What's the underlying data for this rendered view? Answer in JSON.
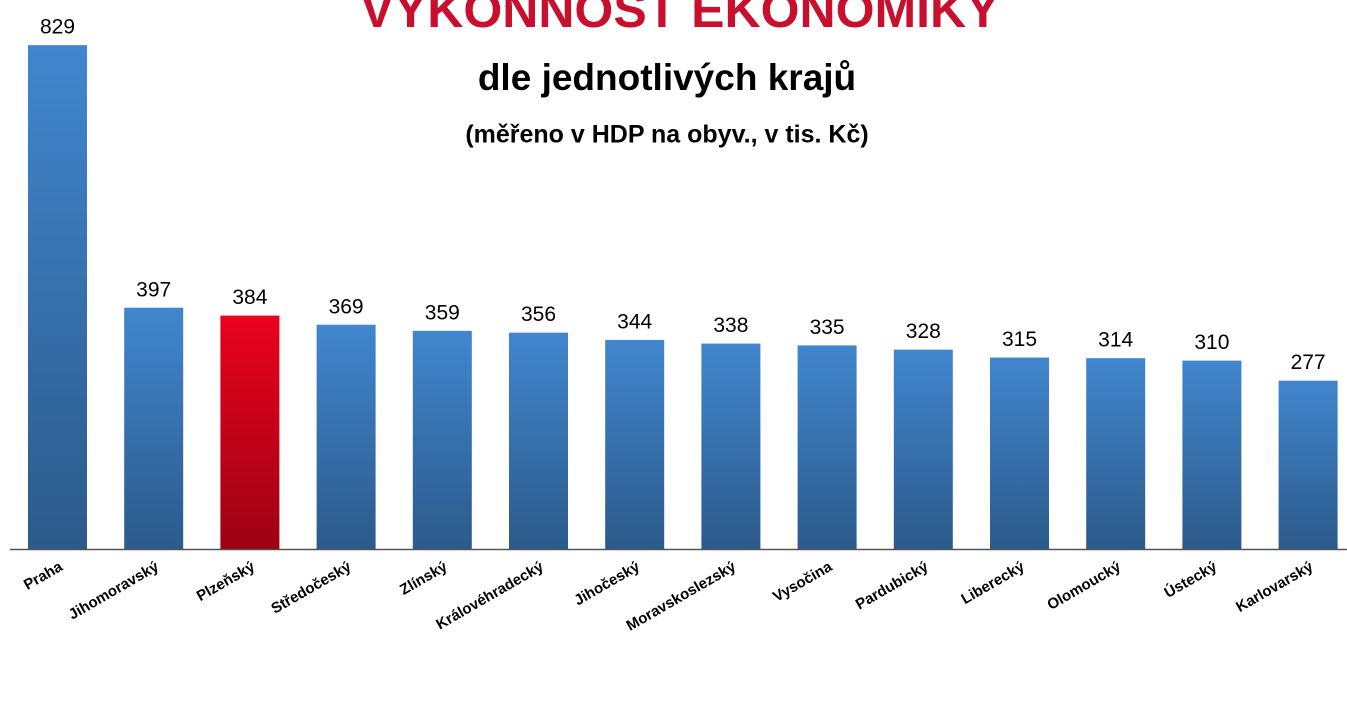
{
  "chart_data": {
    "type": "bar",
    "title": "VÝKONNOST EKONOMIKY",
    "subtitle": "dle jednotlivých krajů",
    "subtitle2": "(měřeno v HDP na obyv., v tis. Kč)",
    "categories": [
      "Praha",
      "Jihomoravský",
      "Plzeňský",
      "Středočeský",
      "Zlínský",
      "Královéhradecký",
      "Jihočeský",
      "Moravskoslezský",
      "Vysočina",
      "Pardubický",
      "Liberecký",
      "Olomoucký",
      "Ústecký",
      "Karlovarský"
    ],
    "values": [
      829,
      397,
      384,
      369,
      359,
      356,
      344,
      338,
      335,
      328,
      315,
      314,
      310,
      277
    ],
    "colors": [
      "#3a78b8",
      "#3a78b8",
      "#d0021b",
      "#3a78b8",
      "#3a78b8",
      "#3a78b8",
      "#3a78b8",
      "#3a78b8",
      "#3a78b8",
      "#3a78b8",
      "#3a78b8",
      "#3a78b8",
      "#3a78b8",
      "#3a78b8"
    ],
    "ylim": [
      0,
      900
    ]
  }
}
